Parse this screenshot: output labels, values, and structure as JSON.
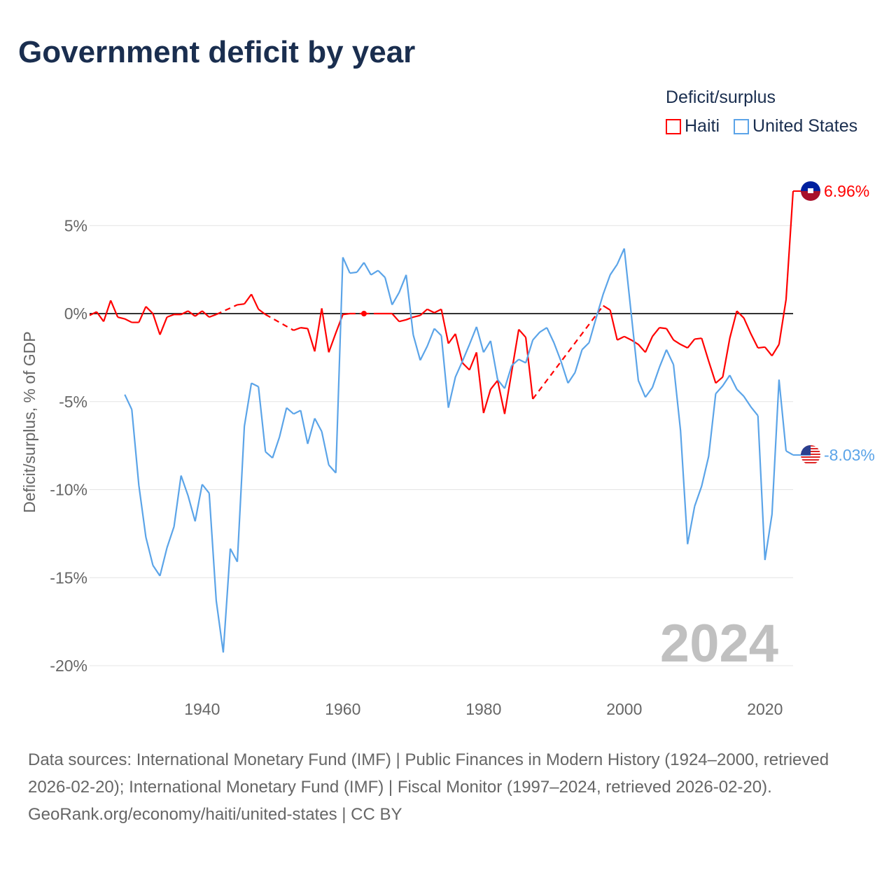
{
  "title": "Government deficit by year",
  "legend": {
    "title": "Deficit/surplus",
    "items": [
      {
        "label": "Haiti",
        "color": "#ff0000"
      },
      {
        "label": "United States",
        "color": "#5ba4e8"
      }
    ]
  },
  "footer": {
    "sources": "Data sources: International Monetary Fund (IMF) | Public Finances in Modern History (1924–2000, retrieved 2026-02-20); International Monetary Fund (IMF) | Fiscal Monitor (1997–2024, retrieved 2026-02-20).",
    "credit": "GeoRank.org/economy/haiti/united-states | CC BY"
  },
  "chart_data": {
    "type": "line",
    "title": "Government deficit by year",
    "ylabel": "Deficit/surplus, % of GDP",
    "xlabel": "",
    "xlim": [
      1924,
      2024
    ],
    "ylim": [
      -22,
      7.5
    ],
    "yticks": [
      5,
      0,
      -5,
      -10,
      -15,
      -20
    ],
    "ytick_labels": [
      "5%",
      "0%",
      "-5%",
      "-10%",
      "-15%",
      "-20%"
    ],
    "xticks": [
      1940,
      1960,
      1980,
      2000,
      2020
    ],
    "xtick_labels": [
      "1940",
      "1960",
      "1980",
      "2000",
      "2020"
    ],
    "year_watermark": "2024",
    "grid": true,
    "legend_position": "top-right",
    "start_year": 1924,
    "series": [
      {
        "name": "Haiti",
        "color": "#ff0000",
        "end_label": "6.96%",
        "values": [
          -0.1,
          0.1,
          -0.45,
          0.75,
          -0.2,
          -0.3,
          -0.5,
          -0.5,
          0.4,
          0,
          -1.2,
          -0.2,
          -0.05,
          -0.05,
          0.15,
          -0.15,
          0.15,
          -0.2,
          -0.05,
          null,
          null,
          0.5,
          0.55,
          1.1,
          0.25,
          -0.05,
          null,
          null,
          null,
          -0.95,
          -0.8,
          -0.85,
          -2.15,
          0.3,
          -2.2,
          -1.1,
          -0.05,
          0,
          null,
          0,
          null,
          0,
          0,
          0,
          -0.45,
          -0.35,
          -0.2,
          -0.1,
          0.25,
          0.05,
          0.25,
          -1.7,
          -1.15,
          -2.8,
          -3.2,
          -2.2,
          -5.65,
          -4.3,
          -3.8,
          -5.7,
          -3.3,
          -0.9,
          -1.35,
          -4.85,
          null,
          null,
          null,
          null,
          null,
          null,
          null,
          null,
          null,
          0.45,
          0.2,
          -1.5,
          -1.3,
          -1.5,
          -1.75,
          -2.2,
          -1.3,
          -0.8,
          -0.85,
          -1.5,
          -1.75,
          -1.95,
          -1.45,
          -1.4,
          -2.7,
          -3.95,
          -3.6,
          -1.4,
          0.15,
          -0.25,
          -1.15,
          -1.95,
          -1.9,
          -2.4,
          -1.75,
          0.8,
          6.96
        ]
      },
      {
        "name": "United States",
        "color": "#5ba4e8",
        "end_label": "-8.03%",
        "values": [
          null,
          null,
          null,
          null,
          null,
          -4.6,
          -5.45,
          -9.75,
          -12.7,
          -14.3,
          -14.9,
          -13.3,
          -12.1,
          -9.2,
          -10.35,
          -11.8,
          -9.7,
          -10.2,
          -16.3,
          -19.25,
          -13.35,
          -14.1,
          -6.4,
          -3.95,
          -4.15,
          -7.85,
          -8.2,
          -7.0,
          -5.35,
          -5.7,
          -5.5,
          -7.4,
          -5.95,
          -6.7,
          -8.6,
          -9.05,
          3.2,
          2.3,
          2.35,
          2.9,
          2.2,
          2.45,
          2.05,
          0.5,
          1.2,
          2.2,
          -1.2,
          -2.65,
          -1.85,
          -0.85,
          -1.25,
          -5.35,
          -3.6,
          -2.7,
          -1.75,
          -0.75,
          -2.2,
          -1.55,
          -3.75,
          -4.25,
          -2.95,
          -2.6,
          -2.8,
          -1.5,
          -1.05,
          -0.8,
          -1.65,
          -2.7,
          -3.95,
          -3.35,
          -2.05,
          -1.65,
          -0.25,
          1.1,
          2.2,
          2.8,
          3.7,
          -0.05,
          -3.8,
          -4.75,
          -4.2,
          -3.05,
          -2.05,
          -2.9,
          -6.65,
          -13.1,
          -10.95,
          -9.8,
          -8.1,
          -4.55,
          -4.1,
          -3.5,
          -4.3,
          -4.7,
          -5.3,
          -5.8,
          -14.0,
          -11.4,
          -3.75,
          -7.8,
          -8.03
        ]
      }
    ]
  }
}
